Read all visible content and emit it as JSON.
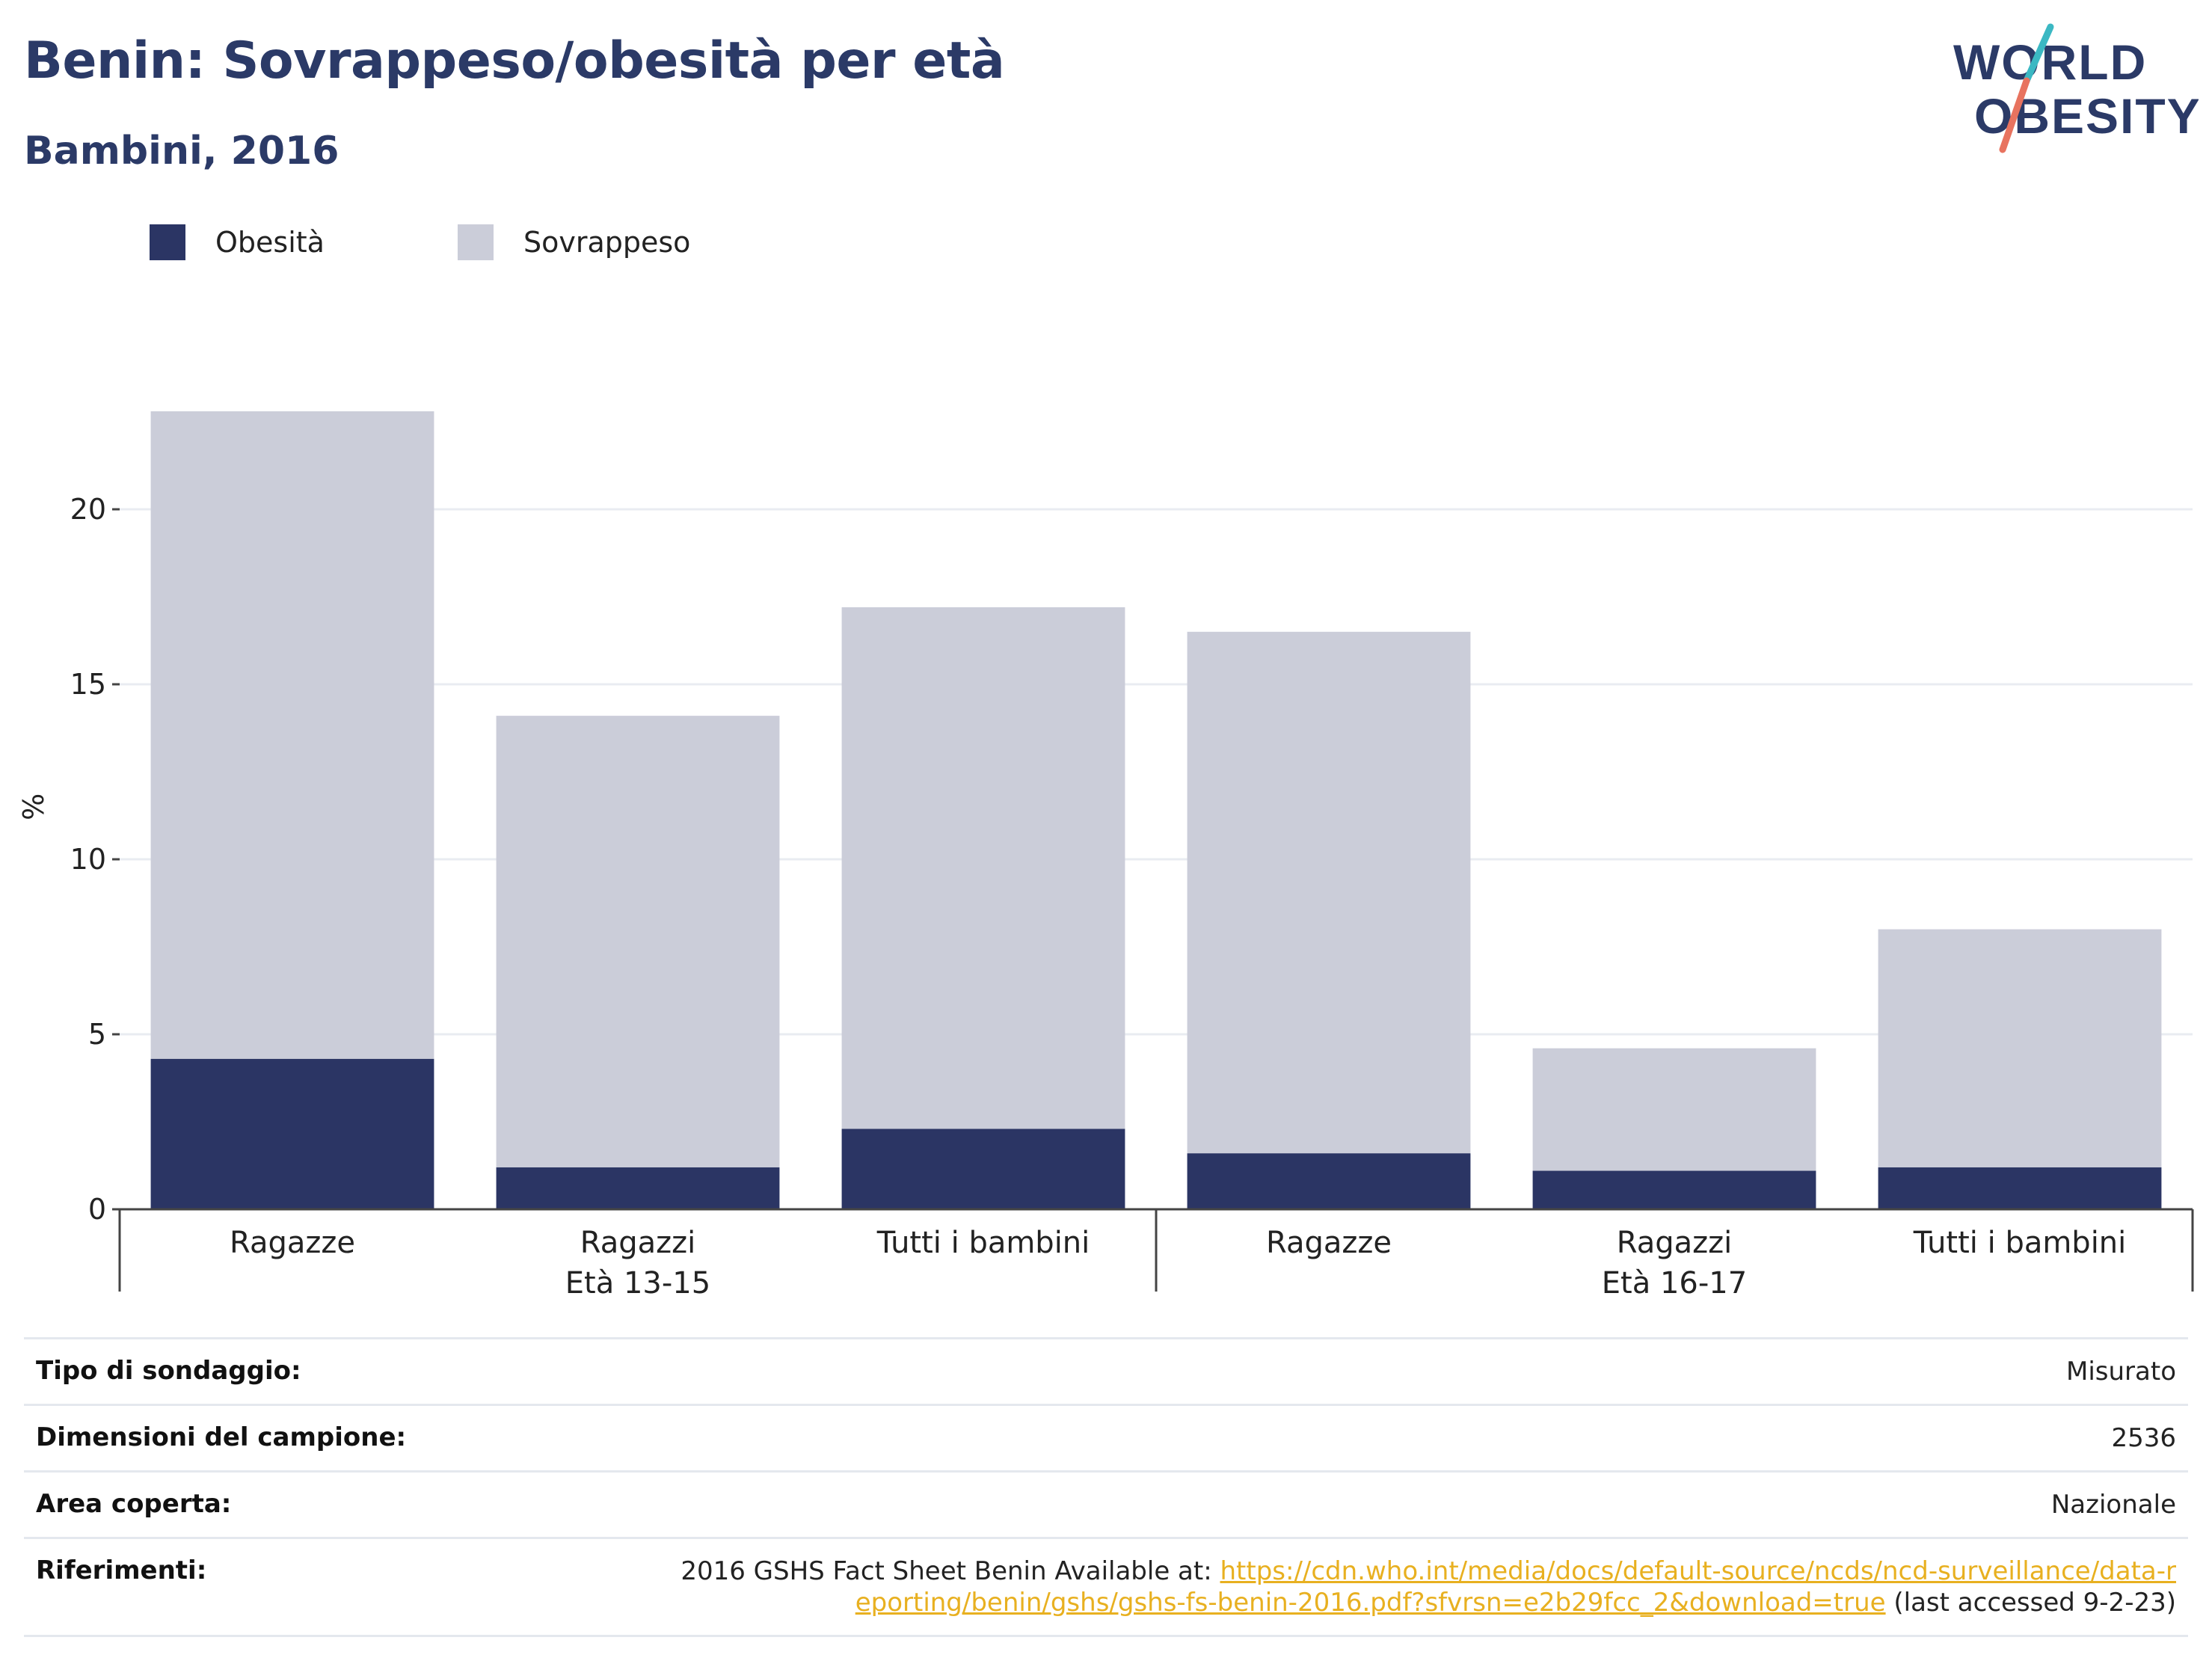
{
  "header": {
    "title": "Benin: Sovrappeso/obesità per età",
    "subtitle": "Bambini, 2016"
  },
  "logo": {
    "line1": "WORLD",
    "line2": "OBESITY"
  },
  "colors": {
    "obesity": "#2b3564",
    "overweight": "#cbcdd9",
    "title": "#2b3a67",
    "link": "#e8b020"
  },
  "chart_data": {
    "type": "bar",
    "stacked": true,
    "categories": [
      "Ragazze",
      "Ragazzi",
      "Tutti i bambini",
      "Ragazze",
      "Ragazzi",
      "Tutti i bambini"
    ],
    "groups": [
      {
        "label": "Età 13-15",
        "categories": [
          0,
          1,
          2
        ]
      },
      {
        "label": "Età 16-17",
        "categories": [
          3,
          4,
          5
        ]
      }
    ],
    "series": [
      {
        "name": "Obesità",
        "values": [
          4.3,
          1.2,
          2.3,
          1.6,
          1.1,
          1.2
        ]
      },
      {
        "name": "Sovrappeso",
        "values": [
          18.5,
          12.9,
          14.9,
          14.9,
          3.5,
          6.8
        ]
      }
    ],
    "ylabel": "%",
    "ylim": [
      0,
      23
    ],
    "yticks": [
      0,
      5,
      10,
      15,
      20
    ],
    "grid": true,
    "legend_position": "top-left"
  },
  "info": [
    {
      "label": "Tipo di sondaggio:",
      "value": "Misurato"
    },
    {
      "label": "Dimensioni del campione:",
      "value": "2536"
    },
    {
      "label": "Area coperta:",
      "value": "Nazionale"
    }
  ],
  "references": {
    "label": "Riferimenti:",
    "prefix": "2016 GSHS Fact Sheet Benin Available at: ",
    "link": "https://cdn.who.int/media/docs/default-source/ncds/ncd-surveillance/data-reporting/benin/gshs/gshs-fs-benin-2016.pdf?sfvrsn=e2b29fcc_2&download=true",
    "suffix": " (last accessed 9-2-23)"
  }
}
